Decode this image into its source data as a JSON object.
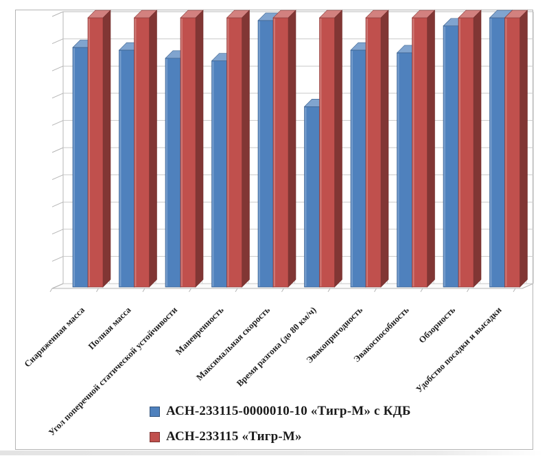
{
  "chart_data": {
    "type": "bar",
    "variant": "3d-clustered-column",
    "title": "",
    "xlabel": "",
    "ylabel": "",
    "categories": [
      "Снаряженная масса",
      "Полная масса",
      "Угол поперечной статической устойчивости",
      "Маневренность",
      "Максимальная скорость",
      "Время разгона (до 80 км/ч)",
      "Эвакопригодность",
      "Эвакоспособность",
      "Обзорность",
      "Удобство посадки и высадки"
    ],
    "series": [
      {
        "name": "АСН-233115-0000010-10 «Тигр-М» с КДБ",
        "color": "#4F81BD",
        "values": [
          8.9,
          8.8,
          8.5,
          8.4,
          9.9,
          6.7,
          8.8,
          8.7,
          9.7,
          10
        ]
      },
      {
        "name": "АСН-233115 «Тигр-М»",
        "color": "#C0504D",
        "values": [
          10,
          10,
          10,
          10,
          10,
          10,
          10,
          10,
          10,
          10
        ]
      }
    ],
    "ylim": [
      0,
      10
    ],
    "y_step": 1,
    "y_tick_labels_visible": false,
    "grid": true,
    "legend_position": "bottom-center",
    "grid_color": "#c9c9c9",
    "wall_edge_color": "#b5b5b5",
    "label_color": "#1e1e1e"
  }
}
